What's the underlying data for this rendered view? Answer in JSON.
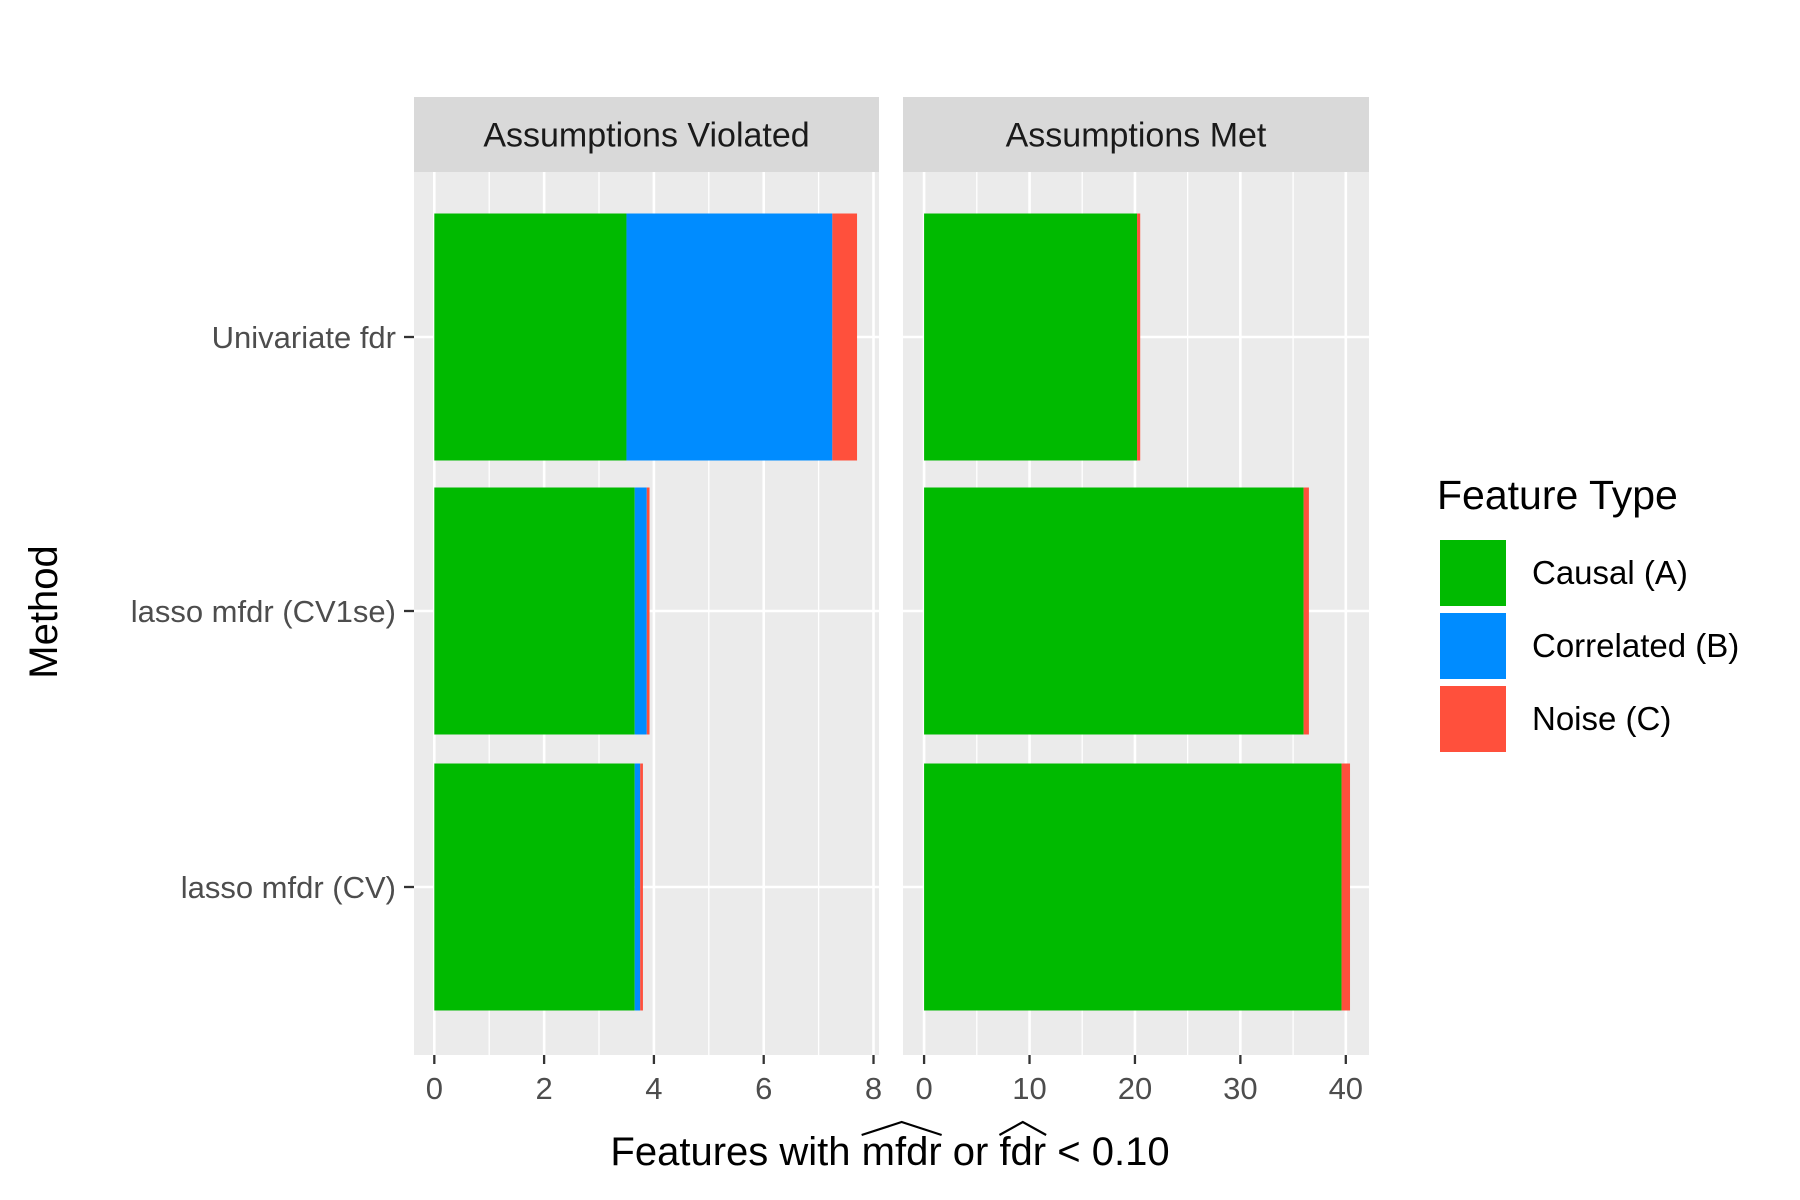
{
  "chart_data": {
    "type": "bar",
    "orientation": "horizontal",
    "stacked": true,
    "ylabel": "Method",
    "xlabel": {
      "prefix": "Features with ",
      "term1": "mfdr",
      "middle": " or ",
      "term2": "fdr",
      "suffix": " < 0.10"
    },
    "categories": [
      "Univariate fdr",
      "lasso mfdr (CV1se)",
      "lasso mfdr (CV)"
    ],
    "legend": {
      "title": "Feature Type",
      "placement": "right",
      "entries": [
        {
          "name": "Causal (A)",
          "color": "#00BA00"
        },
        {
          "name": "Correlated (B)",
          "color": "#008CFF"
        },
        {
          "name": "Noise (C)",
          "color": "#FF503C"
        }
      ]
    },
    "grid": true,
    "panels": [
      {
        "title": "Assumptions Violated",
        "xlim": [
          -0.37,
          8.1
        ],
        "xticks": [
          0,
          2,
          4,
          6,
          8
        ],
        "xtick_labels": [
          "0",
          "2",
          "4",
          "6",
          "8"
        ],
        "series": [
          {
            "name": "Causal (A)",
            "values": [
              3.5,
              3.65,
              3.65
            ]
          },
          {
            "name": "Correlated (B)",
            "values": [
              3.75,
              0.22,
              0.1
            ]
          },
          {
            "name": "Noise (C)",
            "values": [
              0.45,
              0.05,
              0.05
            ]
          }
        ]
      },
      {
        "title": "Assumptions Met",
        "xlim": [
          -2.0,
          42.2
        ],
        "xticks": [
          0,
          10,
          20,
          30,
          40
        ],
        "xtick_labels": [
          "0",
          "10",
          "20",
          "30",
          "40"
        ],
        "series": [
          {
            "name": "Causal (A)",
            "values": [
              20.2,
              36.0,
              39.6
            ]
          },
          {
            "name": "Correlated (B)",
            "values": [
              0,
              0,
              0
            ]
          },
          {
            "name": "Noise (C)",
            "values": [
              0.3,
              0.5,
              0.8
            ]
          }
        ]
      }
    ]
  }
}
